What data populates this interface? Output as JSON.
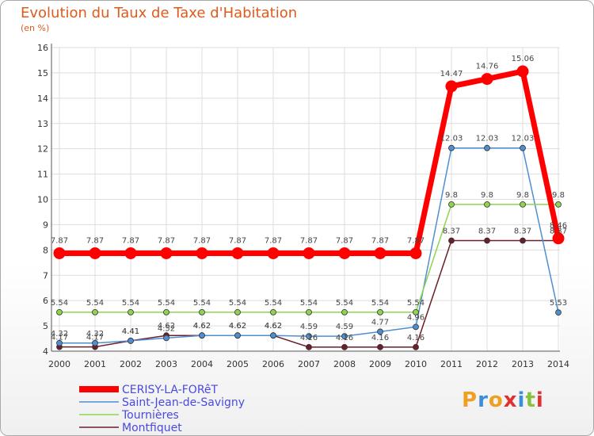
{
  "chart_data": {
    "type": "line",
    "title": "Evolution du Taux de Taxe d'Habitation",
    "unit_label": "(en %)",
    "x": [
      "2000",
      "2001",
      "2002",
      "2003",
      "2004",
      "2005",
      "2006",
      "2007",
      "2008",
      "2009",
      "2010",
      "2011",
      "2012",
      "2013",
      "2014"
    ],
    "ylim": [
      4,
      16
    ],
    "yticks": [
      4,
      5,
      6,
      7,
      8,
      9,
      10,
      11,
      12,
      13,
      14,
      15,
      16
    ],
    "grid": true,
    "legend_position": "bottom-left",
    "series": [
      {
        "name": "CERISY-LA-FORêT",
        "color": "#ff0000",
        "values": [
          7.87,
          7.87,
          7.87,
          7.87,
          7.87,
          7.87,
          7.87,
          7.87,
          7.87,
          7.87,
          7.87,
          14.47,
          14.76,
          15.06,
          8.46
        ],
        "labels": [
          "7.87",
          "7.87",
          "7.87",
          "7.87",
          "7.87",
          "7.87",
          "7.87",
          "7.87",
          "7.87",
          "7.87",
          "7.87",
          "14.47",
          "14.76",
          "15.06",
          "8.46"
        ]
      },
      {
        "name": "Saint-Jean-de-Savigny",
        "color": "#4f8fcf",
        "values": [
          4.32,
          4.32,
          4.41,
          4.52,
          4.62,
          4.62,
          4.62,
          4.59,
          4.59,
          4.77,
          4.96,
          12.03,
          12.03,
          12.03,
          5.53
        ],
        "labels": [
          "4.32",
          "4.32",
          "4.41",
          "4.52",
          "4.62",
          "4.62",
          "4.62",
          "4.59",
          "4.59",
          "4.77",
          "4.96",
          "12.03",
          "12.03",
          "12.03",
          "5.53"
        ]
      },
      {
        "name": "Tournières",
        "color": "#8fd44f",
        "values": [
          5.54,
          5.54,
          5.54,
          5.54,
          5.54,
          5.54,
          5.54,
          5.54,
          5.54,
          5.54,
          5.54,
          9.8,
          9.8,
          9.8,
          9.8
        ],
        "labels": [
          "5.54",
          "5.54",
          "5.54",
          "5.54",
          "5.54",
          "5.54",
          "5.54",
          "5.54",
          "5.54",
          "5.54",
          "5.54",
          "9.8",
          "9.8",
          "9.8",
          "9.8"
        ]
      },
      {
        "name": "Montfiquet",
        "color": "#6b1f2a",
        "values": [
          4.17,
          4.17,
          4.41,
          4.62,
          4.62,
          4.62,
          4.62,
          4.16,
          4.16,
          4.16,
          4.16,
          8.37,
          8.37,
          8.37,
          8.37
        ],
        "labels": [
          "4.17",
          "4.17",
          "4.41",
          "4.62",
          "4.62",
          "4.62",
          "4.62",
          "4.16",
          "4.16",
          "4.16",
          "4.16",
          "8.37",
          "8.37",
          "8.37",
          "8.37"
        ]
      }
    ]
  },
  "logo": {
    "text": "Proxiti",
    "colors": [
      "#f0a020",
      "#3a8fd8",
      "#f0a020",
      "#e03030",
      "#3a8fd8",
      "#88c040",
      "#e03030"
    ]
  }
}
